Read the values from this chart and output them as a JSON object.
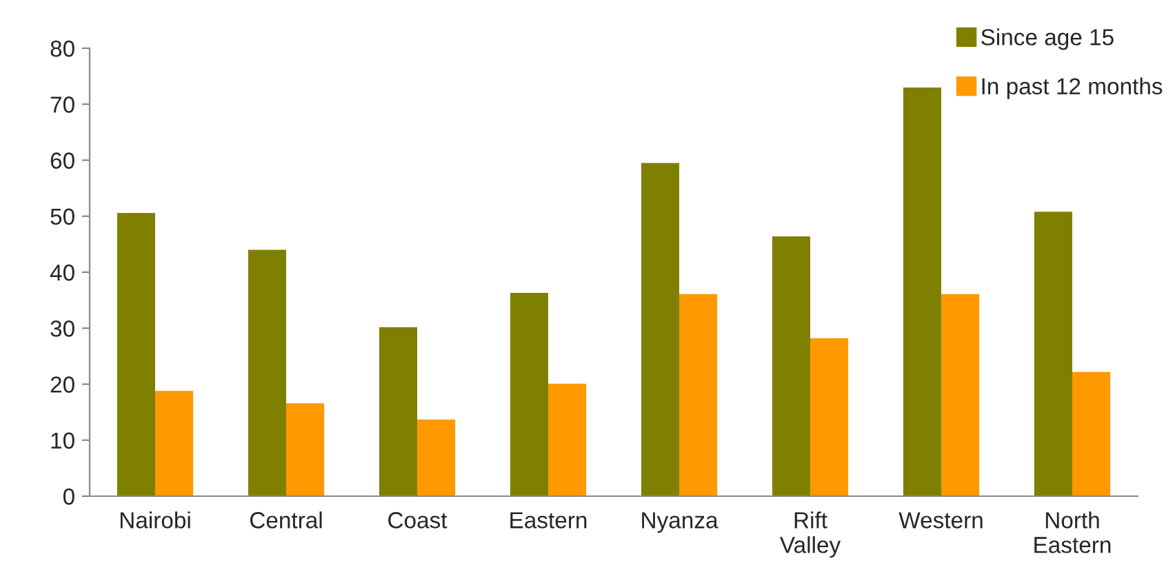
{
  "chart_data": {
    "type": "bar",
    "categories": [
      "Nairobi",
      "Central",
      "Coast",
      "Eastern",
      "Nyanza",
      "Rift\nValley",
      "Western",
      "North\nEastern"
    ],
    "series": [
      {
        "name": "Since age 15",
        "color": "#808000",
        "values": [
          50.6,
          44.0,
          30.2,
          36.3,
          59.5,
          46.4,
          73.0,
          50.8
        ]
      },
      {
        "name": "In past 12 months",
        "color": "#ff9900",
        "values": [
          18.8,
          16.6,
          13.7,
          20.1,
          36.1,
          28.2,
          36.1,
          22.2
        ]
      }
    ],
    "ylim": [
      0,
      80
    ],
    "yticks": [
      0,
      10,
      20,
      30,
      40,
      50,
      60,
      70,
      80
    ],
    "grid": false,
    "legend": "top right"
  }
}
